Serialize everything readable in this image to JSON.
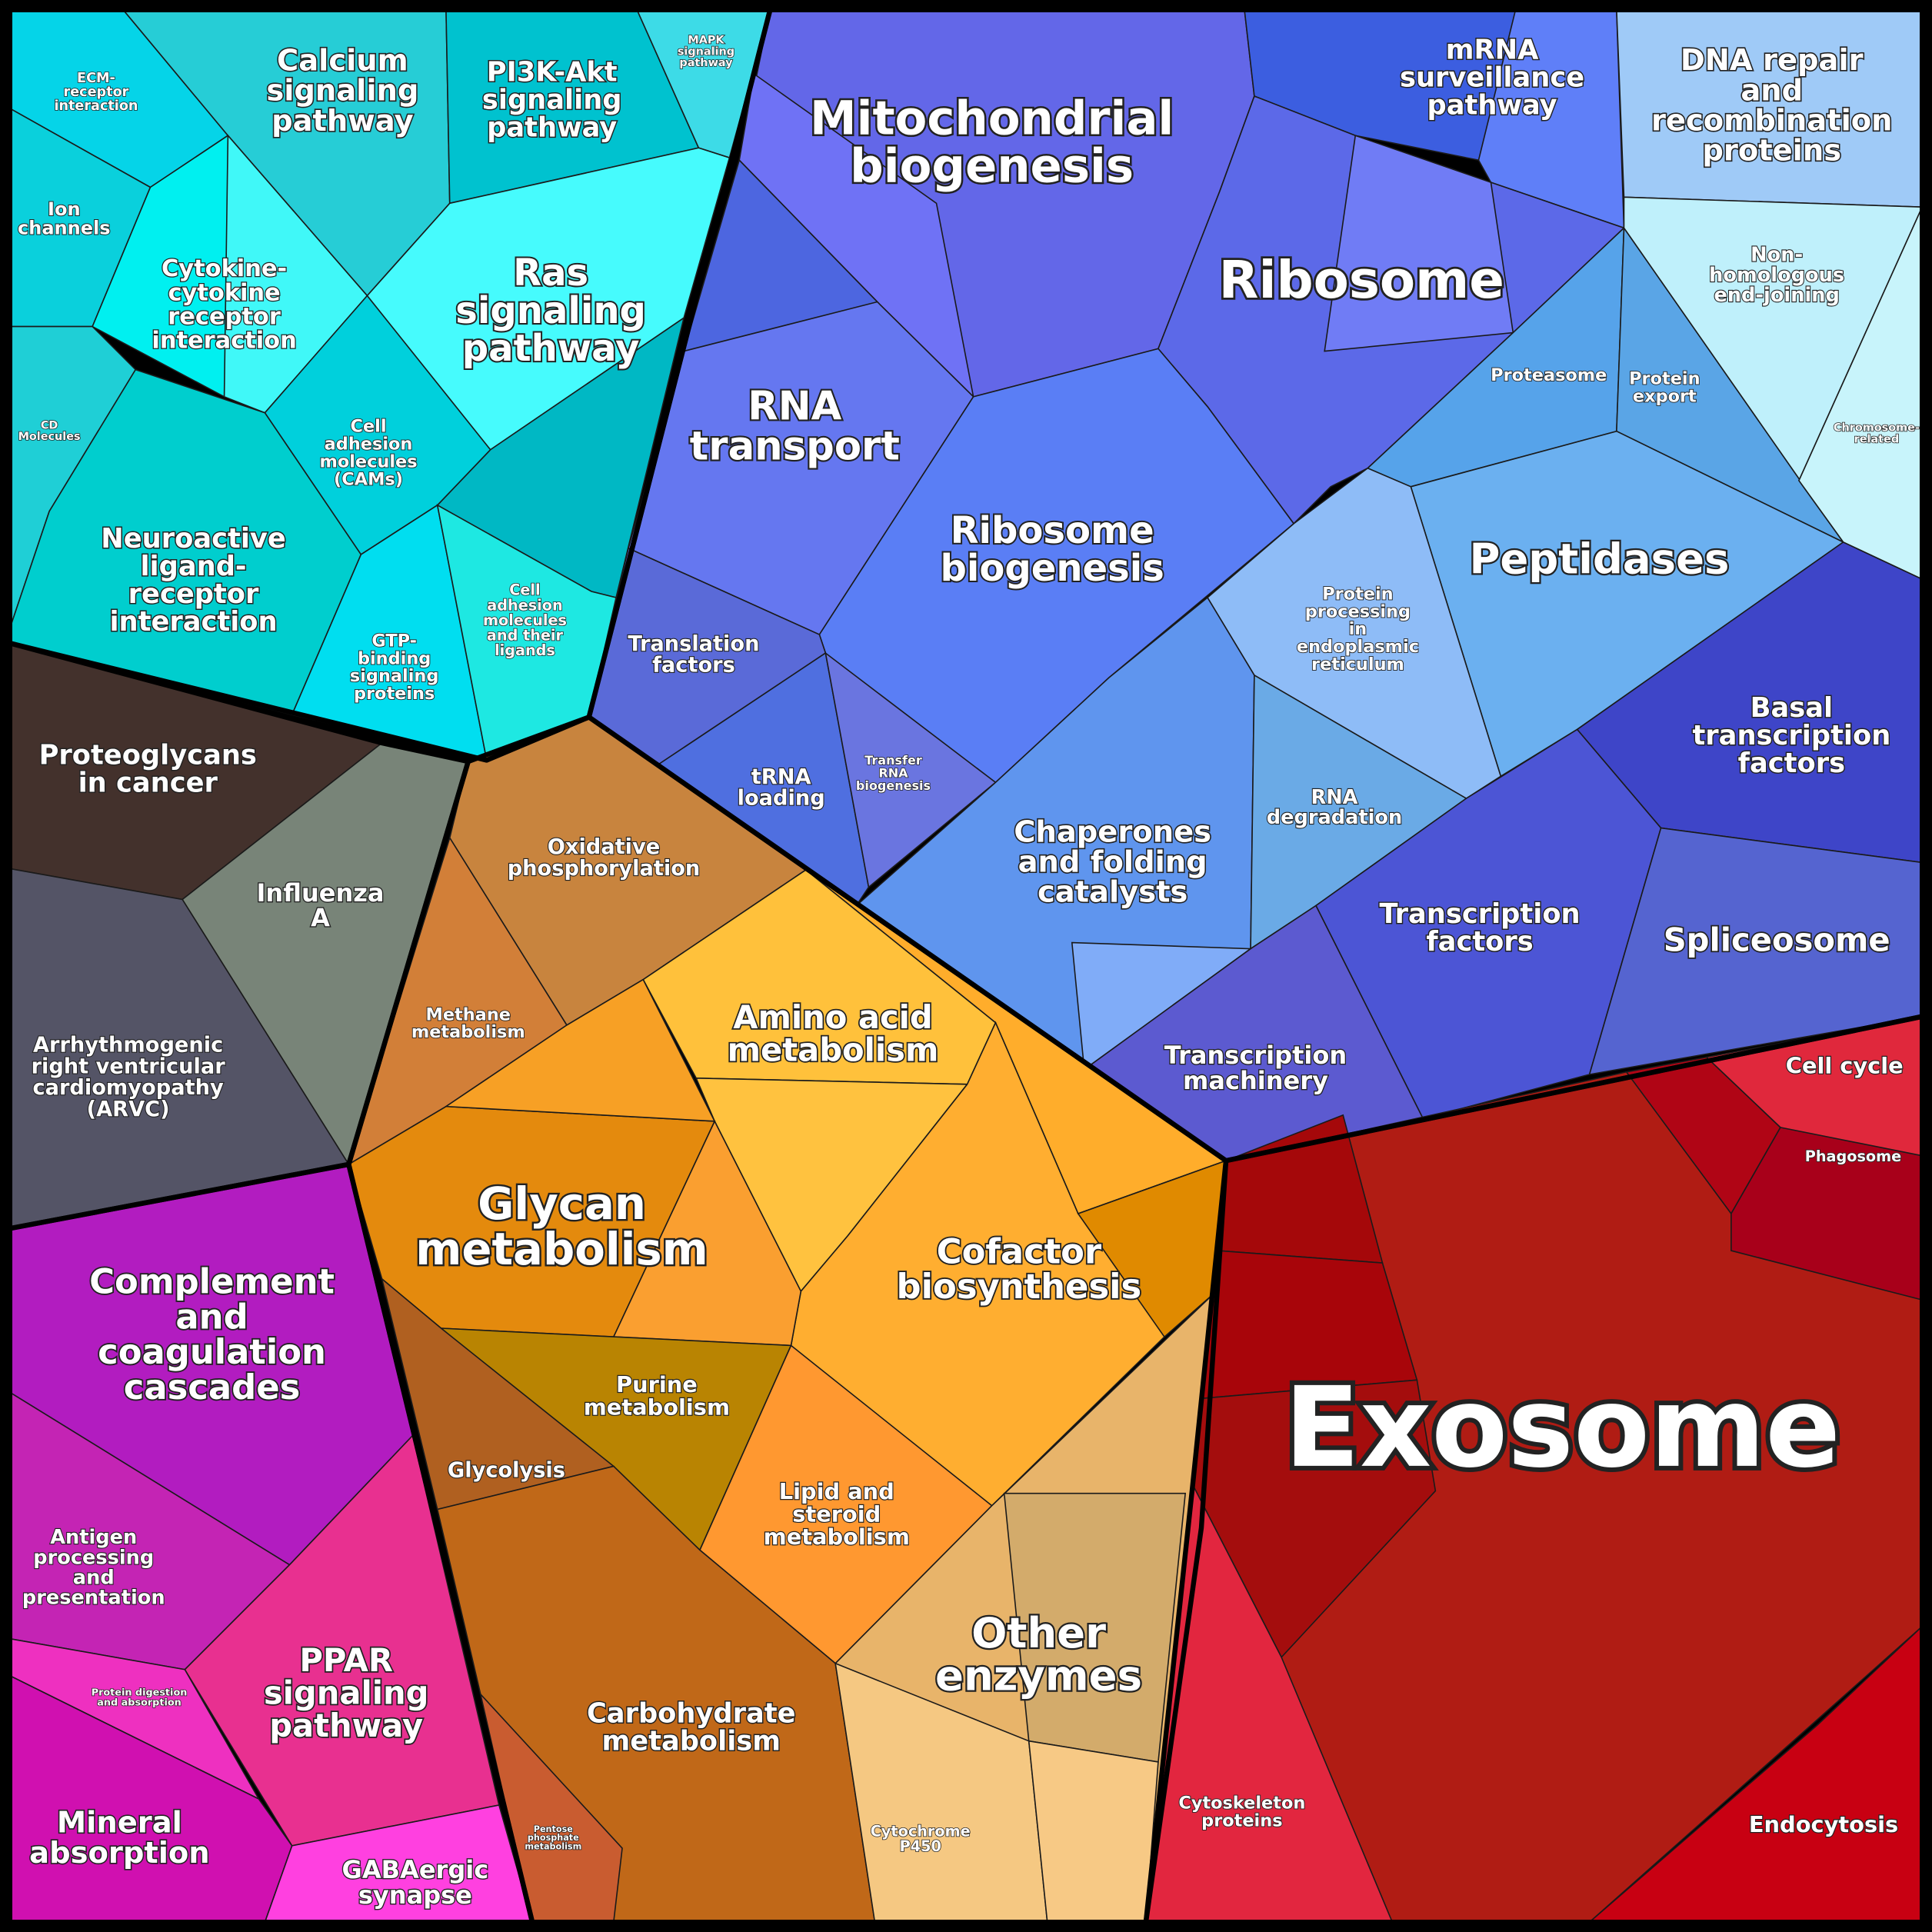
{
  "labels": [
    [
      "ECM-",
      "receptor",
      "interaction"
    ],
    [
      "Calcium",
      "signaling",
      "pathway"
    ],
    [
      "PI3K-Akt",
      "signaling",
      "pathway"
    ],
    [
      "MAPK",
      "signaling",
      "pathway"
    ],
    [
      "Ion",
      "channels"
    ],
    [
      "Cytokine-",
      "cytokine",
      "receptor",
      "interaction"
    ],
    [
      "Ras",
      "signaling",
      "pathway"
    ],
    [
      "CD",
      "Molecules"
    ],
    [
      "Cell",
      "adhesion",
      "molecules",
      "(CAMs)"
    ],
    [
      "Neuroactive",
      "ligand-",
      "receptor",
      "interaction"
    ],
    [
      "GTP-",
      "binding",
      "signaling",
      "proteins"
    ],
    [
      "Cell",
      "adhesion",
      "molecules",
      "and their",
      "ligands"
    ],
    [
      "Mitochondrial",
      "biogenesis"
    ],
    [
      "mRNA",
      "surveillance",
      "pathway"
    ],
    [
      "Ribosome"
    ],
    [
      "DNA repair",
      "and",
      "recombination",
      "proteins"
    ],
    [
      "Non-",
      "homologous",
      "end-joining"
    ],
    [
      "Chromosome-",
      "related"
    ],
    [
      "Proteasome"
    ],
    [
      "Protein",
      "export"
    ],
    [
      "RNA",
      "transport"
    ],
    [
      "Ribosome",
      "biogenesis"
    ],
    [
      "Peptidases"
    ],
    [
      "Protein",
      "processing",
      "in",
      "endoplasmic",
      "reticulum"
    ],
    [
      "Translation",
      "factors"
    ],
    [
      "tRNA",
      "loading"
    ],
    [
      "Transfer",
      "RNA",
      "biogenesis"
    ],
    [
      "Basal",
      "transcription",
      "factors"
    ],
    [
      "RNA",
      "degradation"
    ],
    [
      "Chaperones",
      "and folding",
      "catalysts"
    ],
    [
      "Transcription",
      "factors"
    ],
    [
      "Spliceosome"
    ],
    [
      "Transcription",
      "machinery"
    ],
    [
      "Proteoglycans",
      "in cancer"
    ],
    [
      "Influenza",
      "A"
    ],
    [
      "Arrhythmogenic",
      "right ventricular",
      "cardiomyopathy",
      "(ARVC)"
    ],
    [
      "Oxidative",
      "phosphorylation"
    ],
    [
      "Methane",
      "metabolism"
    ],
    [
      "Amino acid",
      "metabolism"
    ],
    [
      "Glycan",
      "metabolism"
    ],
    [
      "Cofactor",
      "biosynthesis"
    ],
    [
      "Purine",
      "metabolism"
    ],
    [
      "Glycolysis"
    ],
    [
      "Lipid and",
      "steroid",
      "metabolism"
    ],
    [
      "Carbohydrate",
      "metabolism"
    ],
    [
      "Pentose",
      "phosphate",
      "metabolism"
    ],
    [
      "Cytochrome",
      "P450"
    ],
    [
      "Other",
      "enzymes"
    ],
    [
      "Cell cycle"
    ],
    [
      "Phagosome"
    ],
    [
      "Exosome"
    ],
    [
      "Cytoskeleton",
      "proteins"
    ],
    [
      "Endocytosis"
    ],
    [
      "Complement",
      "and",
      "coagulation",
      "cascades"
    ],
    [
      "Antigen",
      "processing",
      "and",
      "presentation"
    ],
    [
      "PPAR",
      "signaling",
      "pathway"
    ],
    [
      "Protein digestion",
      "and absorption"
    ],
    [
      "Mineral",
      "absorption"
    ],
    [
      "GABAergic",
      "synapse"
    ]
  ]
}
